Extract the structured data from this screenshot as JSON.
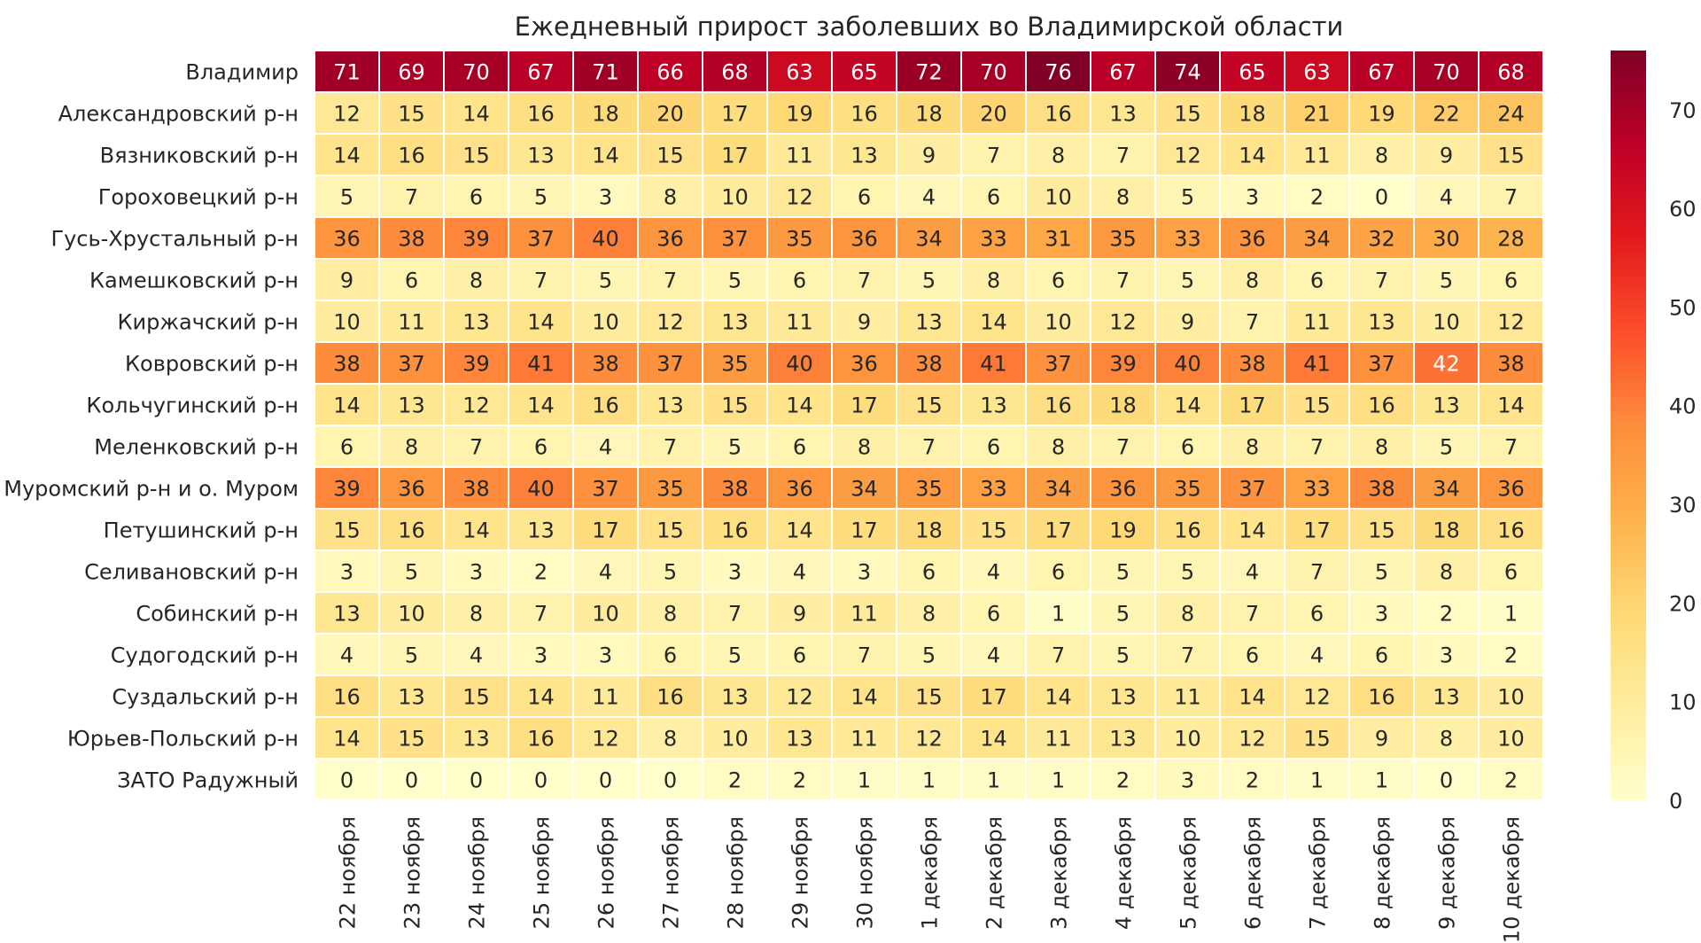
{
  "chart_data": {
    "type": "heatmap",
    "title": "Ежедневный прирост заболевших во Владимирской области",
    "rows": [
      "Владимир",
      "Александровский р-н",
      "Вязниковский р-н",
      "Гороховецкий р-н",
      "Гусь-Хрустальный р-н",
      "Камешковский р-н",
      "Киржачский р-н",
      "Ковровский р-н",
      "Кольчугинский р-н",
      "Меленковский р-н",
      "Муромский р-н и о. Муром",
      "Петушинский р-н",
      "Селивановский р-н",
      "Собинский р-н",
      "Судогодский р-н",
      "Суздальский р-н",
      "Юрьев-Польский р-н",
      "ЗАТО Радужный"
    ],
    "columns": [
      "22 ноября",
      "23 ноября",
      "24 ноября",
      "25 ноября",
      "26 ноября",
      "27 ноября",
      "28 ноября",
      "29 ноября",
      "30 ноября",
      "1 декабря",
      "2 декабря",
      "3 декабря",
      "4 декабря",
      "5 декабря",
      "6 декабря",
      "7 декабря",
      "8 декабря",
      "9 декабря",
      "10 декабря"
    ],
    "values": [
      [
        71,
        69,
        70,
        67,
        71,
        66,
        68,
        63,
        65,
        72,
        70,
        76,
        67,
        74,
        65,
        63,
        67,
        70,
        68
      ],
      [
        12,
        15,
        14,
        16,
        18,
        20,
        17,
        19,
        16,
        18,
        20,
        16,
        13,
        15,
        18,
        21,
        19,
        22,
        24
      ],
      [
        14,
        16,
        15,
        13,
        14,
        15,
        17,
        11,
        13,
        9,
        7,
        8,
        7,
        12,
        14,
        11,
        8,
        9,
        15
      ],
      [
        5,
        7,
        6,
        5,
        3,
        8,
        10,
        12,
        6,
        4,
        6,
        10,
        8,
        5,
        3,
        2,
        0,
        4,
        7
      ],
      [
        36,
        38,
        39,
        37,
        40,
        36,
        37,
        35,
        36,
        34,
        33,
        31,
        35,
        33,
        36,
        34,
        32,
        30,
        28
      ],
      [
        9,
        6,
        8,
        7,
        5,
        7,
        5,
        6,
        7,
        5,
        8,
        6,
        7,
        5,
        8,
        6,
        7,
        5,
        6
      ],
      [
        10,
        11,
        13,
        14,
        10,
        12,
        13,
        11,
        9,
        13,
        14,
        10,
        12,
        9,
        7,
        11,
        13,
        10,
        12
      ],
      [
        38,
        37,
        39,
        41,
        38,
        37,
        35,
        40,
        36,
        38,
        41,
        37,
        39,
        40,
        38,
        41,
        37,
        42,
        38
      ],
      [
        14,
        13,
        12,
        14,
        16,
        13,
        15,
        14,
        17,
        15,
        13,
        16,
        18,
        14,
        17,
        15,
        16,
        13,
        14
      ],
      [
        6,
        8,
        7,
        6,
        4,
        7,
        5,
        6,
        8,
        7,
        6,
        8,
        7,
        6,
        8,
        7,
        8,
        5,
        7
      ],
      [
        39,
        36,
        38,
        40,
        37,
        35,
        38,
        36,
        34,
        35,
        33,
        34,
        36,
        35,
        37,
        33,
        38,
        34,
        36
      ],
      [
        15,
        16,
        14,
        13,
        17,
        15,
        16,
        14,
        17,
        18,
        15,
        17,
        19,
        16,
        14,
        17,
        15,
        18,
        16
      ],
      [
        3,
        5,
        3,
        2,
        4,
        5,
        3,
        4,
        3,
        6,
        4,
        6,
        5,
        5,
        4,
        7,
        5,
        8,
        6
      ],
      [
        13,
        10,
        8,
        7,
        10,
        8,
        7,
        9,
        11,
        8,
        6,
        1,
        5,
        8,
        7,
        6,
        3,
        2,
        1
      ],
      [
        4,
        5,
        4,
        3,
        3,
        6,
        5,
        6,
        7,
        5,
        4,
        7,
        5,
        7,
        6,
        4,
        6,
        3,
        2
      ],
      [
        16,
        13,
        15,
        14,
        11,
        16,
        13,
        12,
        14,
        15,
        17,
        14,
        13,
        11,
        14,
        12,
        16,
        13,
        10
      ],
      [
        14,
        15,
        13,
        16,
        12,
        8,
        10,
        13,
        11,
        12,
        14,
        11,
        13,
        10,
        12,
        15,
        9,
        8,
        10
      ],
      [
        0,
        0,
        0,
        0,
        0,
        0,
        2,
        2,
        1,
        1,
        1,
        1,
        2,
        3,
        2,
        1,
        1,
        0,
        2
      ]
    ],
    "colorbar": {
      "min": 0,
      "max": 76,
      "ticks": [
        0,
        10,
        20,
        30,
        40,
        50,
        60,
        70
      ],
      "colormap": "YlOrRd",
      "stops": [
        "#ffffcc",
        "#ffeda0",
        "#fed976",
        "#feb24c",
        "#fd8d3c",
        "#fc4e2a",
        "#e31a1c",
        "#bd0026",
        "#800026"
      ]
    },
    "grid": false,
    "legend": "colorbar-right"
  }
}
